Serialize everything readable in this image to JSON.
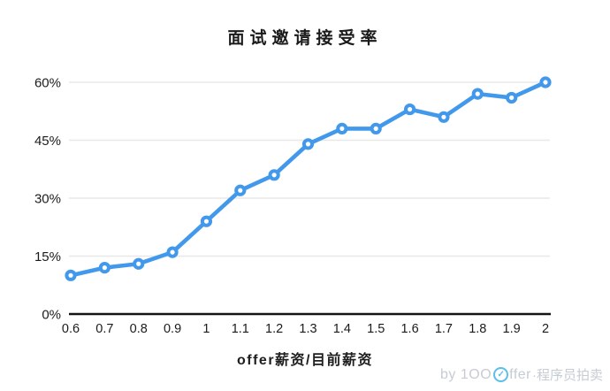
{
  "chart_data": {
    "type": "line",
    "title": "面试邀请接受率",
    "xlabel": "offer薪资/目前薪资",
    "ylabel": "",
    "categories": [
      "0.6",
      "0.7",
      "0.8",
      "0.9",
      "1",
      "1.1",
      "1.2",
      "1.3",
      "1.4",
      "1.5",
      "1.6",
      "1.7",
      "1.8",
      "1.9",
      "2"
    ],
    "values": [
      10,
      12,
      13,
      16,
      24,
      32,
      36,
      44,
      48,
      48,
      53,
      51,
      57,
      56,
      60
    ],
    "yticks": [
      0,
      15,
      30,
      45,
      60
    ],
    "ytick_suffix": "%",
    "ylim": [
      0,
      60
    ],
    "grid": "horizontal",
    "legend": "none",
    "line_color": "#4299eb",
    "marker": "open-circle",
    "marker_fill": "#ffffff",
    "gridline_color": "#e8e8e8",
    "axis_color": "#141414"
  },
  "watermark": {
    "prefix": "by 1OO",
    "check_icon": "✓",
    "brand_suffix": "ffer",
    "suffix": "·程序员拍卖",
    "brand_color": "#5bbfe9",
    "text_color": "#c6ccd3"
  }
}
